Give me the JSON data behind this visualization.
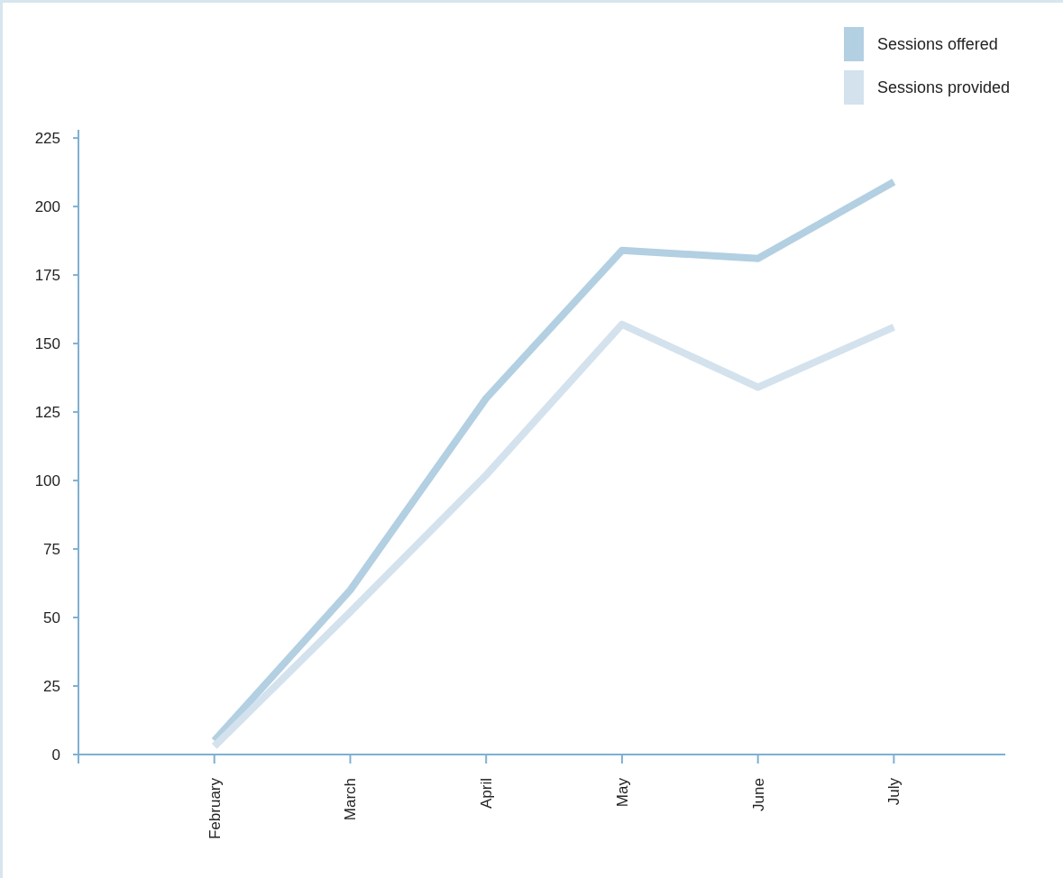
{
  "chart_data": {
    "type": "line",
    "categories": [
      "February",
      "March",
      "April",
      "May",
      "June",
      "July"
    ],
    "series": [
      {
        "name": "Sessions offered",
        "color": "#b3cfe2",
        "values": [
          5,
          60,
          130,
          184,
          181,
          209
        ]
      },
      {
        "name": "Sessions provided",
        "color": "#d3e2ed",
        "values": [
          3,
          52,
          102,
          157,
          134,
          156
        ]
      }
    ],
    "ylim": [
      0,
      228
    ],
    "yticks": [
      0,
      25,
      50,
      75,
      100,
      125,
      150,
      175,
      200,
      225
    ],
    "grid": false,
    "legend": "top right",
    "marker": "none",
    "line_style": "solid"
  }
}
